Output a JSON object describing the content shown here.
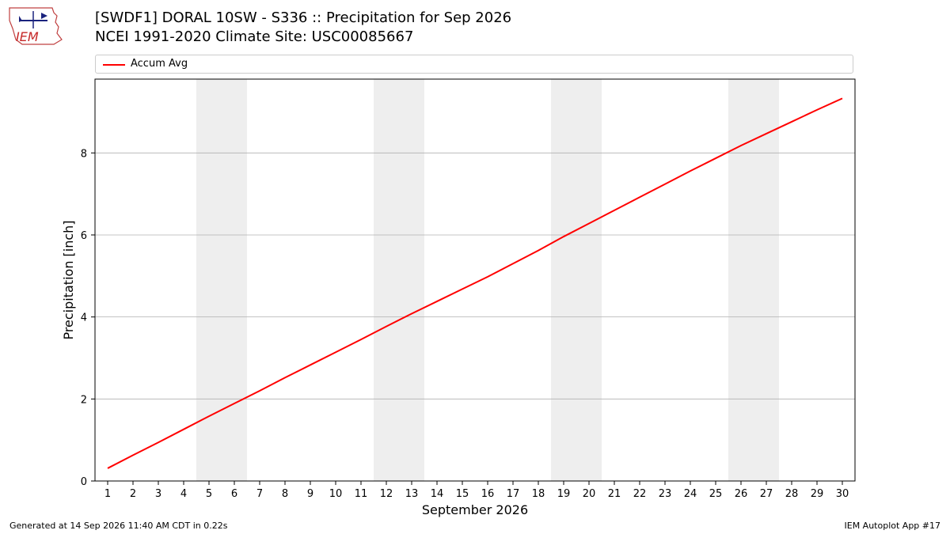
{
  "header": {
    "title_line1": "[SWDF1] DORAL 10SW - S336 :: Precipitation for Sep 2026",
    "title_line2": "NCEI 1991-2020 Climate Site: USC00085667"
  },
  "logo": {
    "text": "IEM"
  },
  "footer": {
    "generated": "Generated at 14 Sep 2026 11:40 AM CDT in 0.22s",
    "app": "IEM Autoplot App #17"
  },
  "colors": {
    "series": "#ff0000",
    "weekend_shade": "#eeeeee",
    "grid": "#b0b0b0"
  },
  "chart_data": {
    "type": "line",
    "xlabel": "September 2026",
    "ylabel": "Precipitation [inch]",
    "x": [
      1,
      2,
      3,
      4,
      5,
      6,
      7,
      8,
      9,
      10,
      11,
      12,
      13,
      14,
      15,
      16,
      17,
      18,
      19,
      20,
      21,
      22,
      23,
      24,
      25,
      26,
      27,
      28,
      29,
      30
    ],
    "series": [
      {
        "name": "Accum Avg",
        "values": [
          0.31,
          0.63,
          0.94,
          1.26,
          1.58,
          1.89,
          2.2,
          2.52,
          2.83,
          3.14,
          3.45,
          3.77,
          4.08,
          4.38,
          4.68,
          4.98,
          5.3,
          5.62,
          5.96,
          6.28,
          6.6,
          6.92,
          7.24,
          7.56,
          7.87,
          8.18,
          8.47,
          8.76,
          9.05,
          9.33
        ]
      }
    ],
    "xlim": [
      0.5,
      30.5
    ],
    "ylim": [
      0,
      9.8
    ],
    "yticks": [
      0,
      2,
      4,
      6,
      8
    ],
    "xticks": [
      1,
      2,
      3,
      4,
      5,
      6,
      7,
      8,
      9,
      10,
      11,
      12,
      13,
      14,
      15,
      16,
      17,
      18,
      19,
      20,
      21,
      22,
      23,
      24,
      25,
      26,
      27,
      28,
      29,
      30
    ],
    "weekend_bands": [
      [
        4.5,
        6.5
      ],
      [
        11.5,
        13.5
      ],
      [
        18.5,
        20.5
      ],
      [
        25.5,
        27.5
      ]
    ],
    "grid": "y",
    "legend": "top"
  }
}
